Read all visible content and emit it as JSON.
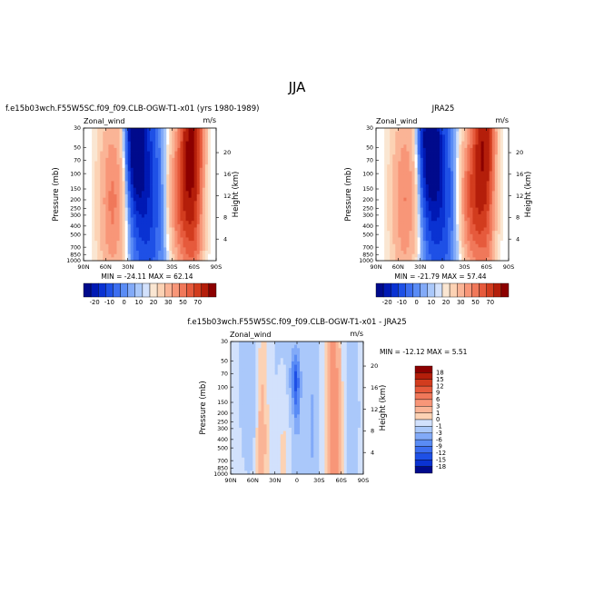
{
  "page_title": "JJA",
  "colors": {
    "neg": [
      "#000a8c",
      "#0019b4",
      "#0a32d2",
      "#1e50e6",
      "#3c6ef0",
      "#5a8cf5",
      "#82aaf8",
      "#aac8fa",
      "#d2e1fc"
    ],
    "pos": [
      "#fae6d2",
      "#fcd2b4",
      "#fab496",
      "#f89678",
      "#f0785a",
      "#e65a3c",
      "#d23c1e",
      "#b41e0a",
      "#8c0000"
    ],
    "neutral": "#ffffff"
  },
  "chart_data": [
    {
      "type": "heatmap",
      "title": "f.e15b03wch.F55W5SC.f09_f09.CLB-OGW-T1-x01 (yrs 1980-1989)",
      "left_label": "Zonal_wind",
      "right_label": "m/s",
      "ylabel": "Pressure (mb)",
      "ylabel_right": "Height (km)",
      "x_ticks": [
        "90N",
        "60N",
        "30N",
        "0",
        "30S",
        "60S",
        "90S"
      ],
      "x_values": [
        90,
        60,
        30,
        0,
        -30,
        -60,
        -90
      ],
      "y_ticks": [
        "30",
        "50",
        "70",
        "100",
        "150",
        "200",
        "250",
        "300",
        "400",
        "500",
        "700",
        "850",
        "1000"
      ],
      "y_values": [
        30,
        50,
        70,
        100,
        150,
        200,
        250,
        300,
        400,
        500,
        700,
        850,
        1000
      ],
      "y_range": [
        1000,
        30
      ],
      "y_scale": "log",
      "height_ticks": [
        "20",
        "16",
        "12",
        "8",
        "4"
      ],
      "height_values": [
        20,
        16,
        12,
        8,
        4
      ],
      "stats": "MIN = -24.11   MAX = 62.14",
      "min": -24.11,
      "max": 62.14,
      "colorbar_labels": [
        "-20",
        "-10",
        "0",
        "10",
        "20",
        "30",
        "50",
        "70"
      ],
      "fields": [
        {
          "lat": -45,
          "p": 180,
          "slat": 12,
          "slp": 0.55,
          "amp": 28
        },
        {
          "lat": -57,
          "p": 38,
          "slat": 9,
          "slp": 0.75,
          "amp": 55
        },
        {
          "lat": -62,
          "p": 800,
          "slat": 7,
          "slp": 0.3,
          "amp": 6
        },
        {
          "lat": 50,
          "p": 210,
          "slat": 12,
          "slp": 0.7,
          "amp": 17
        },
        {
          "lat": 20,
          "p": 35,
          "slat": 9,
          "slp": 0.55,
          "amp": -24
        },
        {
          "lat": 5,
          "p": 120,
          "slat": 13,
          "slp": 0.8,
          "amp": -13
        },
        {
          "lat": 0,
          "p": 600,
          "slat": 28,
          "slp": 1.2,
          "amp": -5
        }
      ]
    },
    {
      "type": "heatmap",
      "title": "JRA25",
      "left_label": "Zonal_wind",
      "right_label": "m/s",
      "ylabel": "Pressure (mb)",
      "ylabel_right": "Height (km)",
      "x_ticks": [
        "90N",
        "60N",
        "30N",
        "0",
        "30S",
        "60S",
        "90S"
      ],
      "x_values": [
        90,
        60,
        30,
        0,
        -30,
        -60,
        -90
      ],
      "y_ticks": [
        "30",
        "50",
        "70",
        "100",
        "150",
        "200",
        "250",
        "300",
        "400",
        "500",
        "700",
        "850",
        "1000"
      ],
      "y_values": [
        30,
        50,
        70,
        100,
        150,
        200,
        250,
        300,
        400,
        500,
        700,
        850,
        1000
      ],
      "y_range": [
        1000,
        30
      ],
      "y_scale": "log",
      "height_ticks": [
        "20",
        "16",
        "12",
        "8",
        "4"
      ],
      "height_values": [
        20,
        16,
        12,
        8,
        4
      ],
      "stats": "MIN = -21.79   MAX = 57.44",
      "min": -21.79,
      "max": 57.44,
      "colorbar_labels": [
        "-20",
        "-10",
        "0",
        "10",
        "20",
        "30",
        "50",
        "70"
      ],
      "fields": [
        {
          "lat": -43,
          "p": 190,
          "slat": 12,
          "slp": 0.55,
          "amp": 30
        },
        {
          "lat": -57,
          "p": 38,
          "slat": 9,
          "slp": 0.7,
          "amp": 48
        },
        {
          "lat": -62,
          "p": 800,
          "slat": 7,
          "slp": 0.3,
          "amp": 6
        },
        {
          "lat": 50,
          "p": 200,
          "slat": 12,
          "slp": 0.7,
          "amp": 16
        },
        {
          "lat": 18,
          "p": 35,
          "slat": 10,
          "slp": 0.6,
          "amp": -22
        },
        {
          "lat": 5,
          "p": 130,
          "slat": 13,
          "slp": 0.8,
          "amp": -12
        },
        {
          "lat": 0,
          "p": 600,
          "slat": 28,
          "slp": 1.2,
          "amp": -5
        }
      ]
    },
    {
      "type": "heatmap",
      "title": "f.e15b03wch.F55W5SC.f09_f09.CLB-OGW-T1-x01 - JRA25",
      "left_label": "Zonal_wind",
      "right_label": "m/s",
      "ylabel": "Pressure (mb)",
      "ylabel_right": "Height (km)",
      "x_ticks": [
        "90N",
        "60N",
        "30N",
        "0",
        "30S",
        "60S",
        "90S"
      ],
      "x_values": [
        90,
        60,
        30,
        0,
        -30,
        -60,
        -90
      ],
      "y_ticks": [
        "30",
        "50",
        "70",
        "100",
        "150",
        "200",
        "250",
        "300",
        "400",
        "500",
        "700",
        "850",
        "1000"
      ],
      "y_values": [
        30,
        50,
        70,
        100,
        150,
        200,
        250,
        300,
        400,
        500,
        700,
        850,
        1000
      ],
      "y_range": [
        1000,
        30
      ],
      "y_scale": "log",
      "height_ticks": [
        "20",
        "16",
        "12",
        "8",
        "4"
      ],
      "height_values": [
        20,
        16,
        12,
        8,
        4
      ],
      "stats": "MIN = -12.12   MAX =   5.51",
      "min": -12.12,
      "max": 5.51,
      "colorbar_labels": [
        "18",
        "15",
        "12",
        "9",
        "6",
        "3",
        "1",
        "0",
        "-1",
        "-3",
        "-6",
        "-9",
        "-12",
        "-15",
        "-18"
      ],
      "colorbar_levels": [
        18,
        15,
        12,
        9,
        6,
        3,
        1,
        0,
        -1,
        -3,
        -6,
        -9,
        -12,
        -15,
        -18
      ],
      "colorbar_colors": [
        "#8c0000",
        "#b41e0a",
        "#d23c1e",
        "#e65a3c",
        "#f0785a",
        "#f89678",
        "#fab496",
        "#fcd2b4",
        "#d2e1fc",
        "#aac8fa",
        "#82aaf8",
        "#5a8cf5",
        "#3c6ef0",
        "#1e50e6",
        "#0a32d2",
        "#000a8c"
      ],
      "fields": [
        {
          "lat": 2,
          "p": 80,
          "slat": 4,
          "slp": 0.2,
          "amp": -11
        },
        {
          "lat": 0,
          "p": 190,
          "slat": 3,
          "slp": 0.2,
          "amp": -5
        },
        {
          "lat": -48,
          "p": 200,
          "slat": 5,
          "slp": 1.2,
          "amp": 4
        },
        {
          "lat": -55,
          "p": 500,
          "slat": 4,
          "slp": 0.8,
          "amp": 3
        },
        {
          "lat": 48,
          "p": 300,
          "slat": 6,
          "slp": 0.8,
          "amp": 2.5
        },
        {
          "lat": 18,
          "p": 500,
          "slat": 6,
          "slp": 0.6,
          "amp": 1.5
        },
        {
          "lat": -20,
          "p": 300,
          "slat": 6,
          "slp": 1.0,
          "amp": -2.5
        },
        {
          "lat": 65,
          "p": 80,
          "slat": 10,
          "slp": 0.8,
          "amp": -2.5
        },
        {
          "lat": -75,
          "p": 200,
          "slat": 8,
          "slp": 1.2,
          "amp": -2
        },
        {
          "lat": 10,
          "p": 120,
          "slat": 25,
          "slp": 1.5,
          "amp": -1.5
        }
      ]
    }
  ]
}
